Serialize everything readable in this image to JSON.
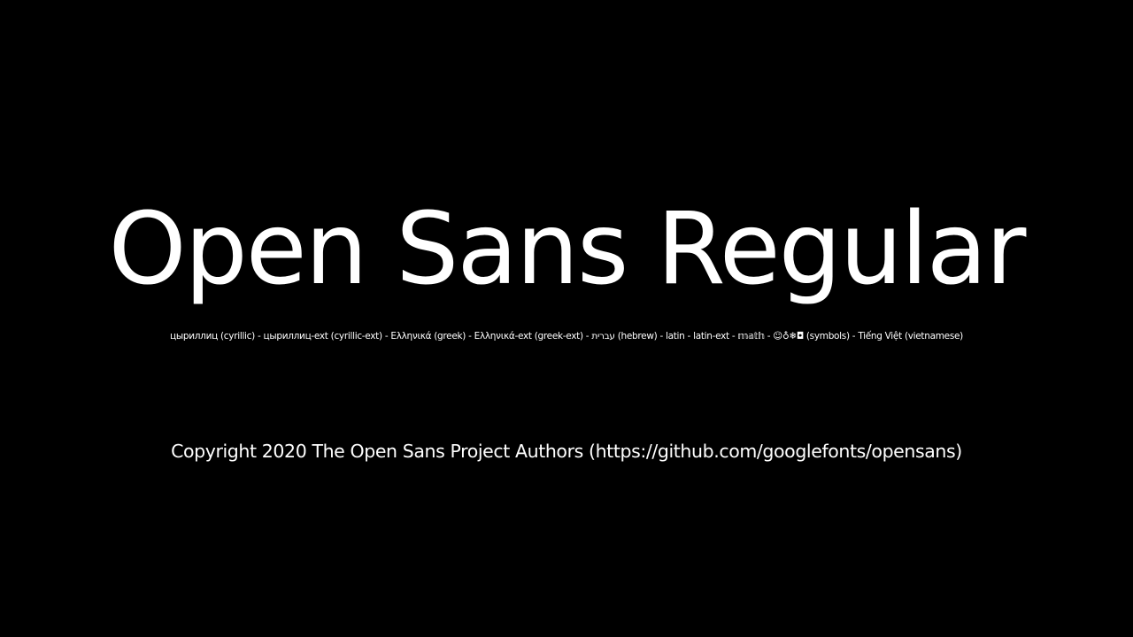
{
  "page": {
    "background": "#000000",
    "text_color": "#ffffff"
  },
  "title": "Open Sans Regular",
  "subsets": "цыриллиц (cyrillic) - цыриллиц-ext (cyrillic-ext) - Ελληνικά (greek) - Ελληνικά-ext (greek-ext) - עברית (hebrew) - latin - latin-ext - 𝕞𝕒𝕥𝕙 - ☺♁❄◘ (symbols) - Tiếng Việt (vietnamese)",
  "copyright": "Copyright 2020 The Open Sans Project Authors (https://github.com/googlefonts/opensans)"
}
